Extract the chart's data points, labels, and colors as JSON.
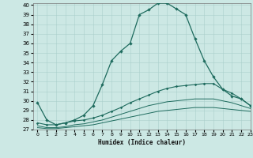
{
  "xlabel": "Humidex (Indice chaleur)",
  "xlim": [
    -0.5,
    23
  ],
  "ylim": [
    27,
    40.2
  ],
  "yticks": [
    27,
    28,
    29,
    30,
    31,
    32,
    33,
    34,
    35,
    36,
    37,
    38,
    39,
    40
  ],
  "xticks": [
    0,
    1,
    2,
    3,
    4,
    5,
    6,
    7,
    8,
    9,
    10,
    11,
    12,
    13,
    14,
    15,
    16,
    17,
    18,
    19,
    20,
    21,
    22,
    23
  ],
  "bg_color": "#cce8e4",
  "grid_color": "#aacfcb",
  "line_color": "#1e6b5e",
  "line1_x": [
    0,
    1,
    2,
    3,
    4,
    5,
    6,
    7,
    8,
    9,
    10,
    11,
    12,
    13,
    14,
    15,
    16,
    17,
    18,
    19,
    20,
    21,
    22,
    23
  ],
  "line1_y": [
    29.8,
    28.0,
    27.5,
    27.7,
    28.0,
    28.5,
    29.5,
    31.7,
    34.2,
    35.2,
    36.0,
    39.0,
    39.5,
    40.2,
    40.2,
    39.6,
    39.0,
    36.5,
    34.2,
    32.5,
    31.2,
    30.5,
    30.2,
    29.5
  ],
  "line2_x": [
    0,
    1,
    2,
    3,
    4,
    5,
    6,
    7,
    8,
    9,
    10,
    11,
    12,
    13,
    14,
    15,
    16,
    17,
    18,
    19,
    20,
    21,
    22,
    23
  ],
  "line2_y": [
    27.7,
    27.5,
    27.5,
    27.7,
    27.9,
    28.0,
    28.2,
    28.5,
    28.9,
    29.3,
    29.8,
    30.2,
    30.6,
    31.0,
    31.3,
    31.5,
    31.6,
    31.7,
    31.8,
    31.8,
    31.2,
    30.8,
    30.2,
    29.5
  ],
  "line3_x": [
    0,
    1,
    2,
    3,
    4,
    5,
    6,
    7,
    8,
    9,
    10,
    11,
    12,
    13,
    14,
    15,
    16,
    17,
    18,
    19,
    20,
    21,
    22,
    23
  ],
  "line3_y": [
    27.4,
    27.2,
    27.2,
    27.3,
    27.5,
    27.6,
    27.8,
    28.0,
    28.3,
    28.6,
    28.9,
    29.2,
    29.5,
    29.7,
    29.9,
    30.0,
    30.1,
    30.2,
    30.2,
    30.2,
    30.0,
    29.8,
    29.5,
    29.2
  ],
  "line4_x": [
    0,
    1,
    2,
    3,
    4,
    5,
    6,
    7,
    8,
    9,
    10,
    11,
    12,
    13,
    14,
    15,
    16,
    17,
    18,
    19,
    20,
    21,
    22,
    23
  ],
  "line4_y": [
    27.2,
    27.1,
    27.1,
    27.2,
    27.3,
    27.4,
    27.5,
    27.7,
    27.9,
    28.1,
    28.3,
    28.5,
    28.7,
    28.9,
    29.0,
    29.1,
    29.2,
    29.3,
    29.3,
    29.3,
    29.2,
    29.1,
    29.0,
    28.9
  ]
}
